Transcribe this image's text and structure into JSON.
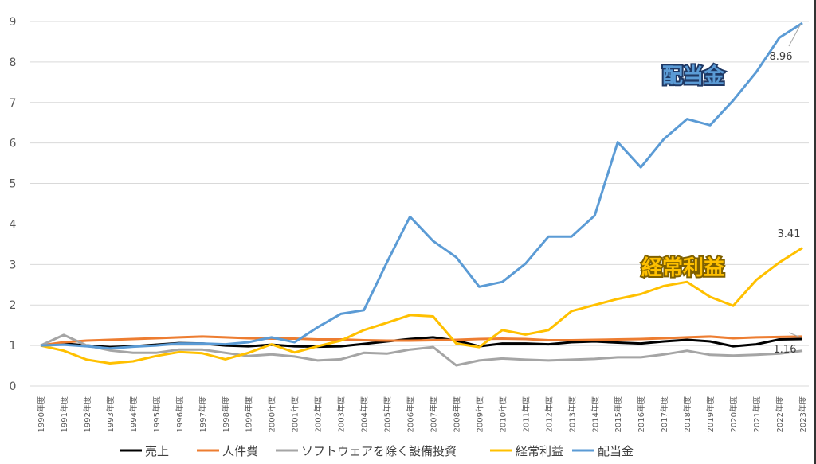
{
  "chart_data": {
    "type": "line",
    "title": "",
    "xlabel": "",
    "ylabel": "",
    "ylim": [
      0,
      9
    ],
    "yticks": [
      "0",
      "1",
      "2",
      "3",
      "4",
      "5",
      "6",
      "7",
      "8",
      "9"
    ],
    "grid": true,
    "legend_position": "bottom",
    "categories": [
      "1990年度",
      "1991年度",
      "1992年度",
      "1993年度",
      "1994年度",
      "1995年度",
      "1996年度",
      "1997年度",
      "1998年度",
      "1999年度",
      "2000年度",
      "2001年度",
      "2002年度",
      "2003年度",
      "2004年度",
      "2005年度",
      "2006年度",
      "2007年度",
      "2008年度",
      "2009年度",
      "2010年度",
      "2011年度",
      "2012年度",
      "2013年度",
      "2014年度",
      "2015年度",
      "2016年度",
      "2017年度",
      "2018年度",
      "2019年度",
      "2020年度",
      "2021年度",
      "2022年度",
      "2023年度"
    ],
    "series": [
      {
        "name": "売上",
        "color": "#000000",
        "values": [
          1.0,
          1.05,
          1.0,
          0.96,
          0.98,
          1.02,
          1.06,
          1.05,
          1.0,
          0.98,
          1.02,
          0.98,
          0.97,
          0.98,
          1.04,
          1.1,
          1.16,
          1.2,
          1.12,
          0.98,
          1.05,
          1.05,
          1.03,
          1.08,
          1.1,
          1.07,
          1.05,
          1.1,
          1.14,
          1.1,
          0.98,
          1.03,
          1.15,
          1.16
        ]
      },
      {
        "name": "人件費",
        "color": "#ED7D31",
        "values": [
          1.0,
          1.08,
          1.12,
          1.14,
          1.16,
          1.18,
          1.2,
          1.22,
          1.2,
          1.18,
          1.17,
          1.17,
          1.15,
          1.15,
          1.13,
          1.12,
          1.12,
          1.13,
          1.14,
          1.16,
          1.17,
          1.16,
          1.13,
          1.13,
          1.14,
          1.15,
          1.16,
          1.18,
          1.2,
          1.22,
          1.18,
          1.2,
          1.21,
          1.22
        ]
      },
      {
        "name": "ソフトウェアを除く設備投資",
        "color": "#A5A5A5",
        "values": [
          1.0,
          1.26,
          1.0,
          0.88,
          0.82,
          0.82,
          0.9,
          0.9,
          0.82,
          0.74,
          0.78,
          0.73,
          0.63,
          0.66,
          0.82,
          0.8,
          0.9,
          0.96,
          0.51,
          0.63,
          0.68,
          0.65,
          0.63,
          0.65,
          0.67,
          0.71,
          0.71,
          0.78,
          0.87,
          0.77,
          0.75,
          0.77,
          0.8,
          0.87
        ]
      },
      {
        "name": "経常利益",
        "color": "#FFC000",
        "values": [
          1.0,
          0.87,
          0.65,
          0.56,
          0.61,
          0.74,
          0.84,
          0.81,
          0.66,
          0.82,
          1.03,
          0.83,
          0.98,
          1.12,
          1.38,
          1.56,
          1.75,
          1.72,
          1.05,
          0.96,
          1.38,
          1.27,
          1.38,
          1.85,
          2.0,
          2.15,
          2.27,
          2.47,
          2.57,
          2.2,
          1.98,
          2.62,
          3.05,
          3.41
        ]
      },
      {
        "name": "配当金",
        "color": "#5B9BD5",
        "values": [
          1.0,
          1.02,
          0.98,
          0.93,
          0.97,
          1.0,
          1.05,
          1.05,
          1.03,
          1.08,
          1.2,
          1.08,
          1.45,
          1.78,
          1.87,
          3.05,
          4.18,
          3.58,
          3.18,
          2.45,
          2.57,
          3.02,
          3.69,
          3.69,
          4.21,
          6.02,
          5.4,
          6.1,
          6.59,
          6.44,
          7.05,
          7.75,
          8.6,
          8.96
        ]
      }
    ],
    "annotations": [
      {
        "text": "配当金",
        "series": "配当金"
      },
      {
        "text": "経常利益",
        "series": "経常利益"
      },
      {
        "text": "8.96",
        "series": "配当金"
      },
      {
        "text": "3.41",
        "series": "経常利益"
      },
      {
        "text": "1.16",
        "series": "売上"
      }
    ]
  }
}
